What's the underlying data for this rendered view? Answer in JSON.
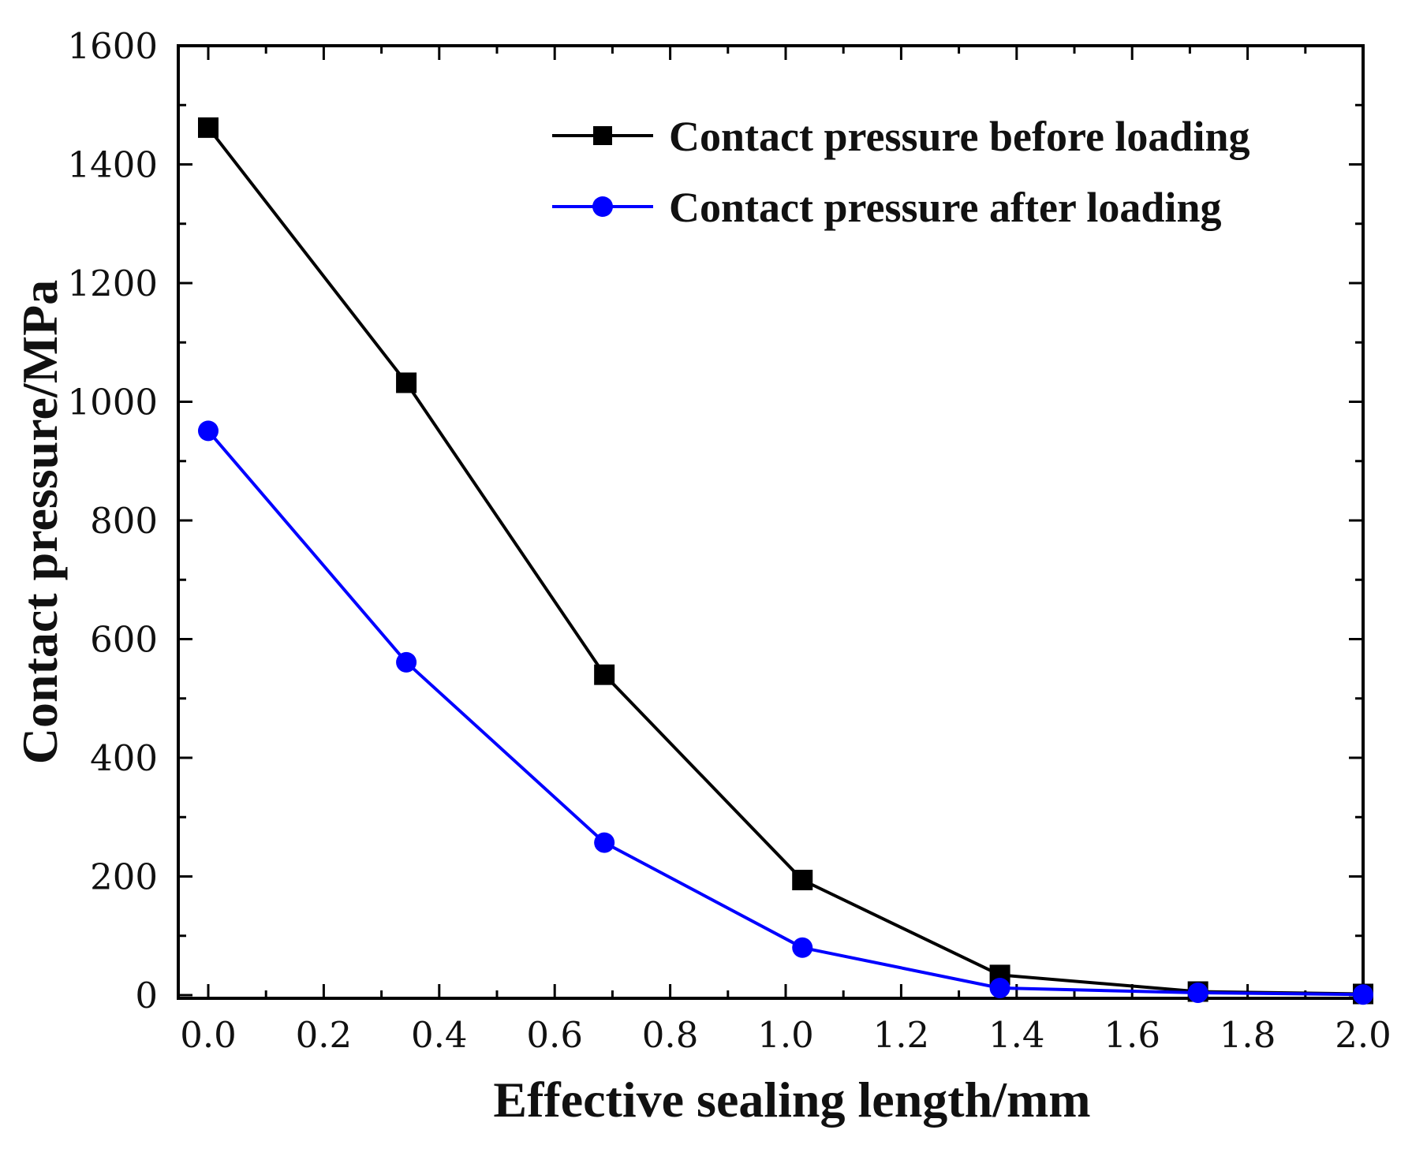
{
  "chart_data": {
    "type": "line",
    "title": "",
    "xlabel": "Effective sealing length/mm",
    "ylabel": "Contact pressure/MPa",
    "xlim": [
      -0.05,
      2.0
    ],
    "ylim": [
      -5,
      1600
    ],
    "xticks": [
      0.0,
      0.2,
      0.4,
      0.6,
      0.8,
      1.0,
      1.2,
      1.4,
      1.6,
      1.8,
      2.0
    ],
    "xtick_labels": [
      "0.0",
      "0.2",
      "0.4",
      "0.6",
      "0.8",
      "1.0",
      "1.2",
      "1.4",
      "1.6",
      "1.8",
      "2.0"
    ],
    "yticks": [
      0,
      200,
      400,
      600,
      800,
      1000,
      1200,
      1400,
      1600
    ],
    "ytick_labels": [
      "0",
      "200",
      "400",
      "600",
      "800",
      "1000",
      "1200",
      "1400",
      "1600"
    ],
    "grid": false,
    "legend_position": "top-right",
    "series": [
      {
        "name": "Contact pressure before loading",
        "color": "#000000",
        "marker": "square",
        "x": [
          0.0,
          0.343,
          0.686,
          1.029,
          1.371,
          1.714,
          2.0
        ],
        "y": [
          1462,
          1032,
          540,
          194,
          34,
          6,
          2
        ]
      },
      {
        "name": "Contact pressure after loading",
        "color": "#0000ff",
        "marker": "circle",
        "x": [
          0.0,
          0.343,
          0.686,
          1.029,
          1.371,
          1.714,
          2.0
        ],
        "y": [
          951,
          561,
          257,
          80,
          12,
          4,
          1
        ]
      }
    ]
  }
}
